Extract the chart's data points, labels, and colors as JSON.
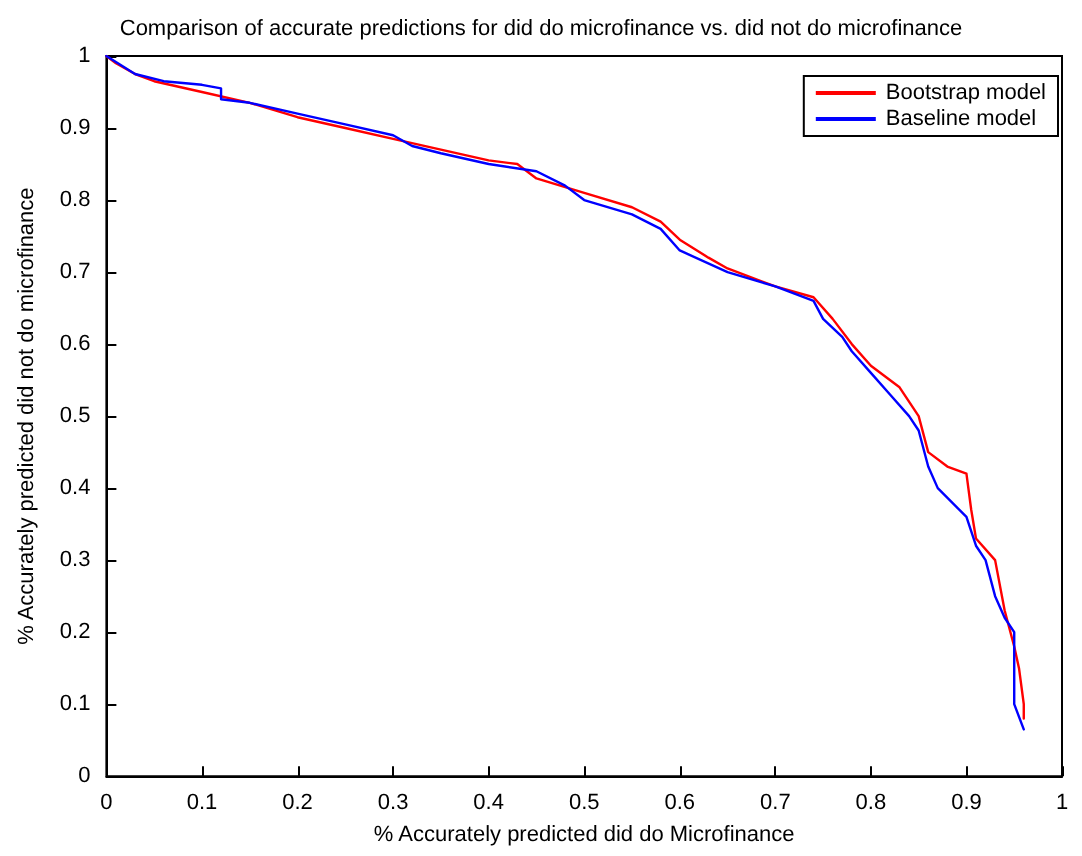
{
  "chart_data": {
    "type": "line",
    "title": "Comparison of accurate predictions for did do microfinance vs. did not do microfinance",
    "xlabel": "% Accurately predicted did do Microfinance",
    "ylabel": "% Accurately predicted did not do microfinance",
    "xlim": [
      0,
      1
    ],
    "ylim": [
      0,
      1
    ],
    "xticks": [
      0,
      0.1,
      0.2,
      0.3,
      0.4,
      0.5,
      0.6,
      0.7,
      0.8,
      0.9,
      1
    ],
    "yticks": [
      0,
      0.1,
      0.2,
      0.3,
      0.4,
      0.5,
      0.6,
      0.7,
      0.8,
      0.9,
      1
    ],
    "grid": false,
    "legend": "top right",
    "marker": "none",
    "line_style": "solid",
    "series": [
      {
        "name": "Bootstrap model",
        "color": "#ff0000",
        "x": [
          0,
          0.01,
          0.03,
          0.05,
          0.1,
          0.15,
          0.2,
          0.25,
          0.3,
          0.35,
          0.4,
          0.43,
          0.45,
          0.5,
          0.55,
          0.58,
          0.6,
          0.63,
          0.65,
          0.7,
          0.74,
          0.76,
          0.78,
          0.8,
          0.83,
          0.85,
          0.86,
          0.88,
          0.9,
          0.905,
          0.91,
          0.93,
          0.94,
          0.95,
          0.955,
          0.96,
          0.96
        ],
        "values": [
          1,
          0.99,
          0.975,
          0.965,
          0.95,
          0.935,
          0.915,
          0.9,
          0.885,
          0.87,
          0.855,
          0.85,
          0.83,
          0.81,
          0.79,
          0.77,
          0.745,
          0.72,
          0.705,
          0.68,
          0.665,
          0.635,
          0.6,
          0.57,
          0.54,
          0.5,
          0.45,
          0.43,
          0.42,
          0.37,
          0.33,
          0.3,
          0.23,
          0.18,
          0.15,
          0.1,
          0.08
        ]
      },
      {
        "name": "Baseline model",
        "color": "#0000ff",
        "x": [
          0,
          0.03,
          0.06,
          0.1,
          0.12,
          0.12,
          0.15,
          0.2,
          0.25,
          0.3,
          0.32,
          0.35,
          0.4,
          0.45,
          0.48,
          0.5,
          0.55,
          0.58,
          0.6,
          0.65,
          0.7,
          0.72,
          0.74,
          0.75,
          0.77,
          0.78,
          0.8,
          0.82,
          0.84,
          0.85,
          0.86,
          0.87,
          0.9,
          0.91,
          0.92,
          0.93,
          0.94,
          0.95,
          0.95,
          0.96
        ],
        "values": [
          1,
          0.975,
          0.965,
          0.96,
          0.955,
          0.94,
          0.935,
          0.92,
          0.905,
          0.89,
          0.875,
          0.865,
          0.85,
          0.84,
          0.82,
          0.8,
          0.78,
          0.76,
          0.73,
          0.7,
          0.68,
          0.67,
          0.66,
          0.635,
          0.61,
          0.59,
          0.56,
          0.53,
          0.5,
          0.48,
          0.43,
          0.4,
          0.36,
          0.32,
          0.3,
          0.25,
          0.22,
          0.2,
          0.1,
          0.065
        ]
      }
    ]
  }
}
